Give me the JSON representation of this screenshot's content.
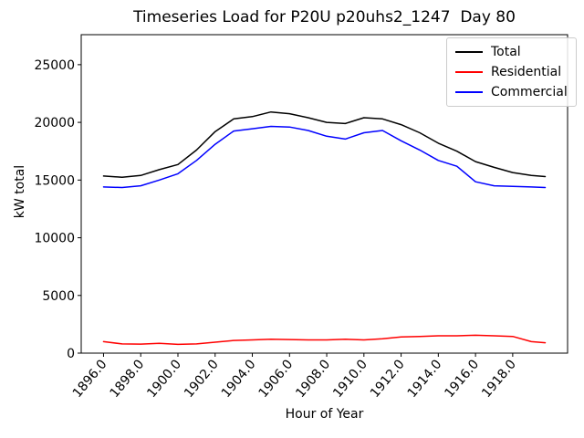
{
  "chart_data": {
    "type": "line",
    "title": "Timeseries Load for P20U p20uhs2_1247  Day 80",
    "xlabel": "Hour of Year",
    "ylabel": "kW total",
    "grid": false,
    "legend_position": "upper right",
    "xlim": [
      1894.8,
      1920.95
    ],
    "ylim": [
      0,
      27600
    ],
    "xticks": [
      1896,
      1898,
      1900,
      1902,
      1904,
      1906,
      1908,
      1910,
      1912,
      1914,
      1916,
      1918
    ],
    "xtick_decimals": 1,
    "xtick_rotation": 50,
    "yticks": [
      0,
      5000,
      10000,
      15000,
      20000,
      25000
    ],
    "x": [
      1896,
      1897,
      1898,
      1899,
      1900,
      1901,
      1902,
      1903,
      1904,
      1905,
      1906,
      1907,
      1908,
      1909,
      1910,
      1911,
      1912,
      1913,
      1914,
      1915,
      1916,
      1917,
      1918,
      1919,
      1919.75
    ],
    "series": [
      {
        "name": "Total",
        "color": "#000000",
        "values": [
          15350,
          15250,
          15400,
          15900,
          16350,
          17600,
          19200,
          20300,
          20500,
          20900,
          20750,
          20400,
          20000,
          19900,
          20400,
          20300,
          19800,
          19100,
          18200,
          17500,
          16600,
          16100,
          15650,
          15400,
          15300
        ]
      },
      {
        "name": "Residential",
        "color": "#ff0000",
        "values": [
          1000,
          800,
          780,
          850,
          760,
          800,
          950,
          1100,
          1150,
          1200,
          1180,
          1150,
          1150,
          1200,
          1150,
          1250,
          1400,
          1450,
          1500,
          1500,
          1550,
          1500,
          1450,
          1000,
          900
        ]
      },
      {
        "name": "Commercial",
        "color": "#0000ff",
        "values": [
          14400,
          14350,
          14500,
          15000,
          15550,
          16700,
          18100,
          19250,
          19450,
          19650,
          19600,
          19300,
          18800,
          18550,
          19100,
          19300,
          18400,
          17600,
          16700,
          16200,
          14850,
          14500,
          14450,
          14400,
          14350
        ]
      }
    ]
  }
}
